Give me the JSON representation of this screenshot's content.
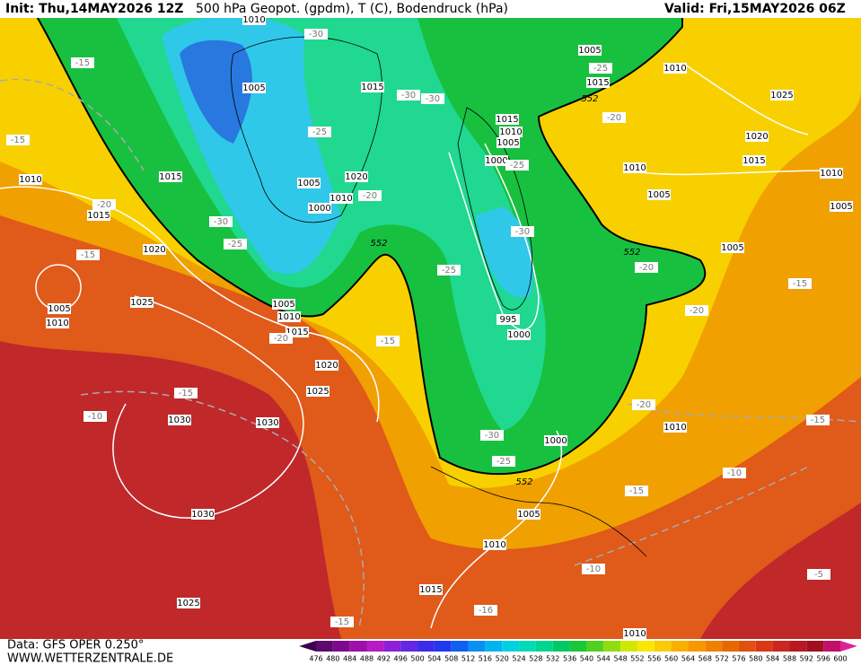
{
  "header": {
    "init": "Init: Thu,14MAY2026 12Z",
    "title": "500 hPa Geopot. (gpdm), T (C), Bodendruck (hPa)",
    "valid": "Valid: Fri,15MAY2026 06Z"
  },
  "footer": {
    "data": "Data: GFS OPER 0.250°",
    "site": "WWW.WETTERZENTRALE.DE"
  },
  "colorbar": {
    "ticks": [
      476,
      480,
      484,
      488,
      492,
      496,
      500,
      504,
      508,
      512,
      516,
      520,
      524,
      528,
      532,
      536,
      540,
      544,
      548,
      552,
      556,
      560,
      564,
      568,
      572,
      576,
      580,
      584,
      588,
      592,
      596,
      600
    ],
    "colors": [
      "#3c0050",
      "#5c0a6e",
      "#7d0a8c",
      "#9c10a8",
      "#b81ac4",
      "#8c20d8",
      "#6428e0",
      "#3c2ce8",
      "#2038f0",
      "#1060f0",
      "#0890f0",
      "#00b4f0",
      "#00d0e0",
      "#00dcb8",
      "#00d490",
      "#00c864",
      "#18c838",
      "#50d020",
      "#90dc10",
      "#d0e800",
      "#f8e800",
      "#f8cc00",
      "#f8b000",
      "#f89800",
      "#f08000",
      "#e86800",
      "#e05010",
      "#d83818",
      "#c82820",
      "#b81820",
      "#a01020",
      "#c0106a",
      "#e0209a"
    ]
  },
  "pressure_labels": [
    "1010",
    "1005",
    "1015",
    "1015",
    "1010",
    "1015",
    "1020",
    "1005",
    "1010",
    "1025",
    "1005",
    "1010",
    "1015",
    "1020",
    "1025",
    "1030",
    "1030",
    "1030",
    "1025",
    "1020",
    "1005",
    "1010",
    "1000",
    "1015",
    "1010",
    "1005",
    "1000",
    "995",
    "1000",
    "1000",
    "1005",
    "1010",
    "1015",
    "1010",
    "1005",
    "1015",
    "1010",
    "1025",
    "1020",
    "1015",
    "1010",
    "1010",
    "1005",
    "1005",
    "1005",
    "1010"
  ],
  "temperature_labels": [
    "-30",
    "-15",
    "-15",
    "-25",
    "-20",
    "-30",
    "-30",
    "-25",
    "-25",
    "-20",
    "-20",
    "-30",
    "-25",
    "-15",
    "-30",
    "-25",
    "-20",
    "-20",
    "-15",
    "-20",
    "-15",
    "-15",
    "-10",
    "-20",
    "-15",
    "-10",
    "-25",
    "-30",
    "-15",
    "-10",
    "-5",
    "-15",
    "-16"
  ],
  "geopotential_labels": [
    "552",
    "552",
    "552",
    "552"
  ]
}
